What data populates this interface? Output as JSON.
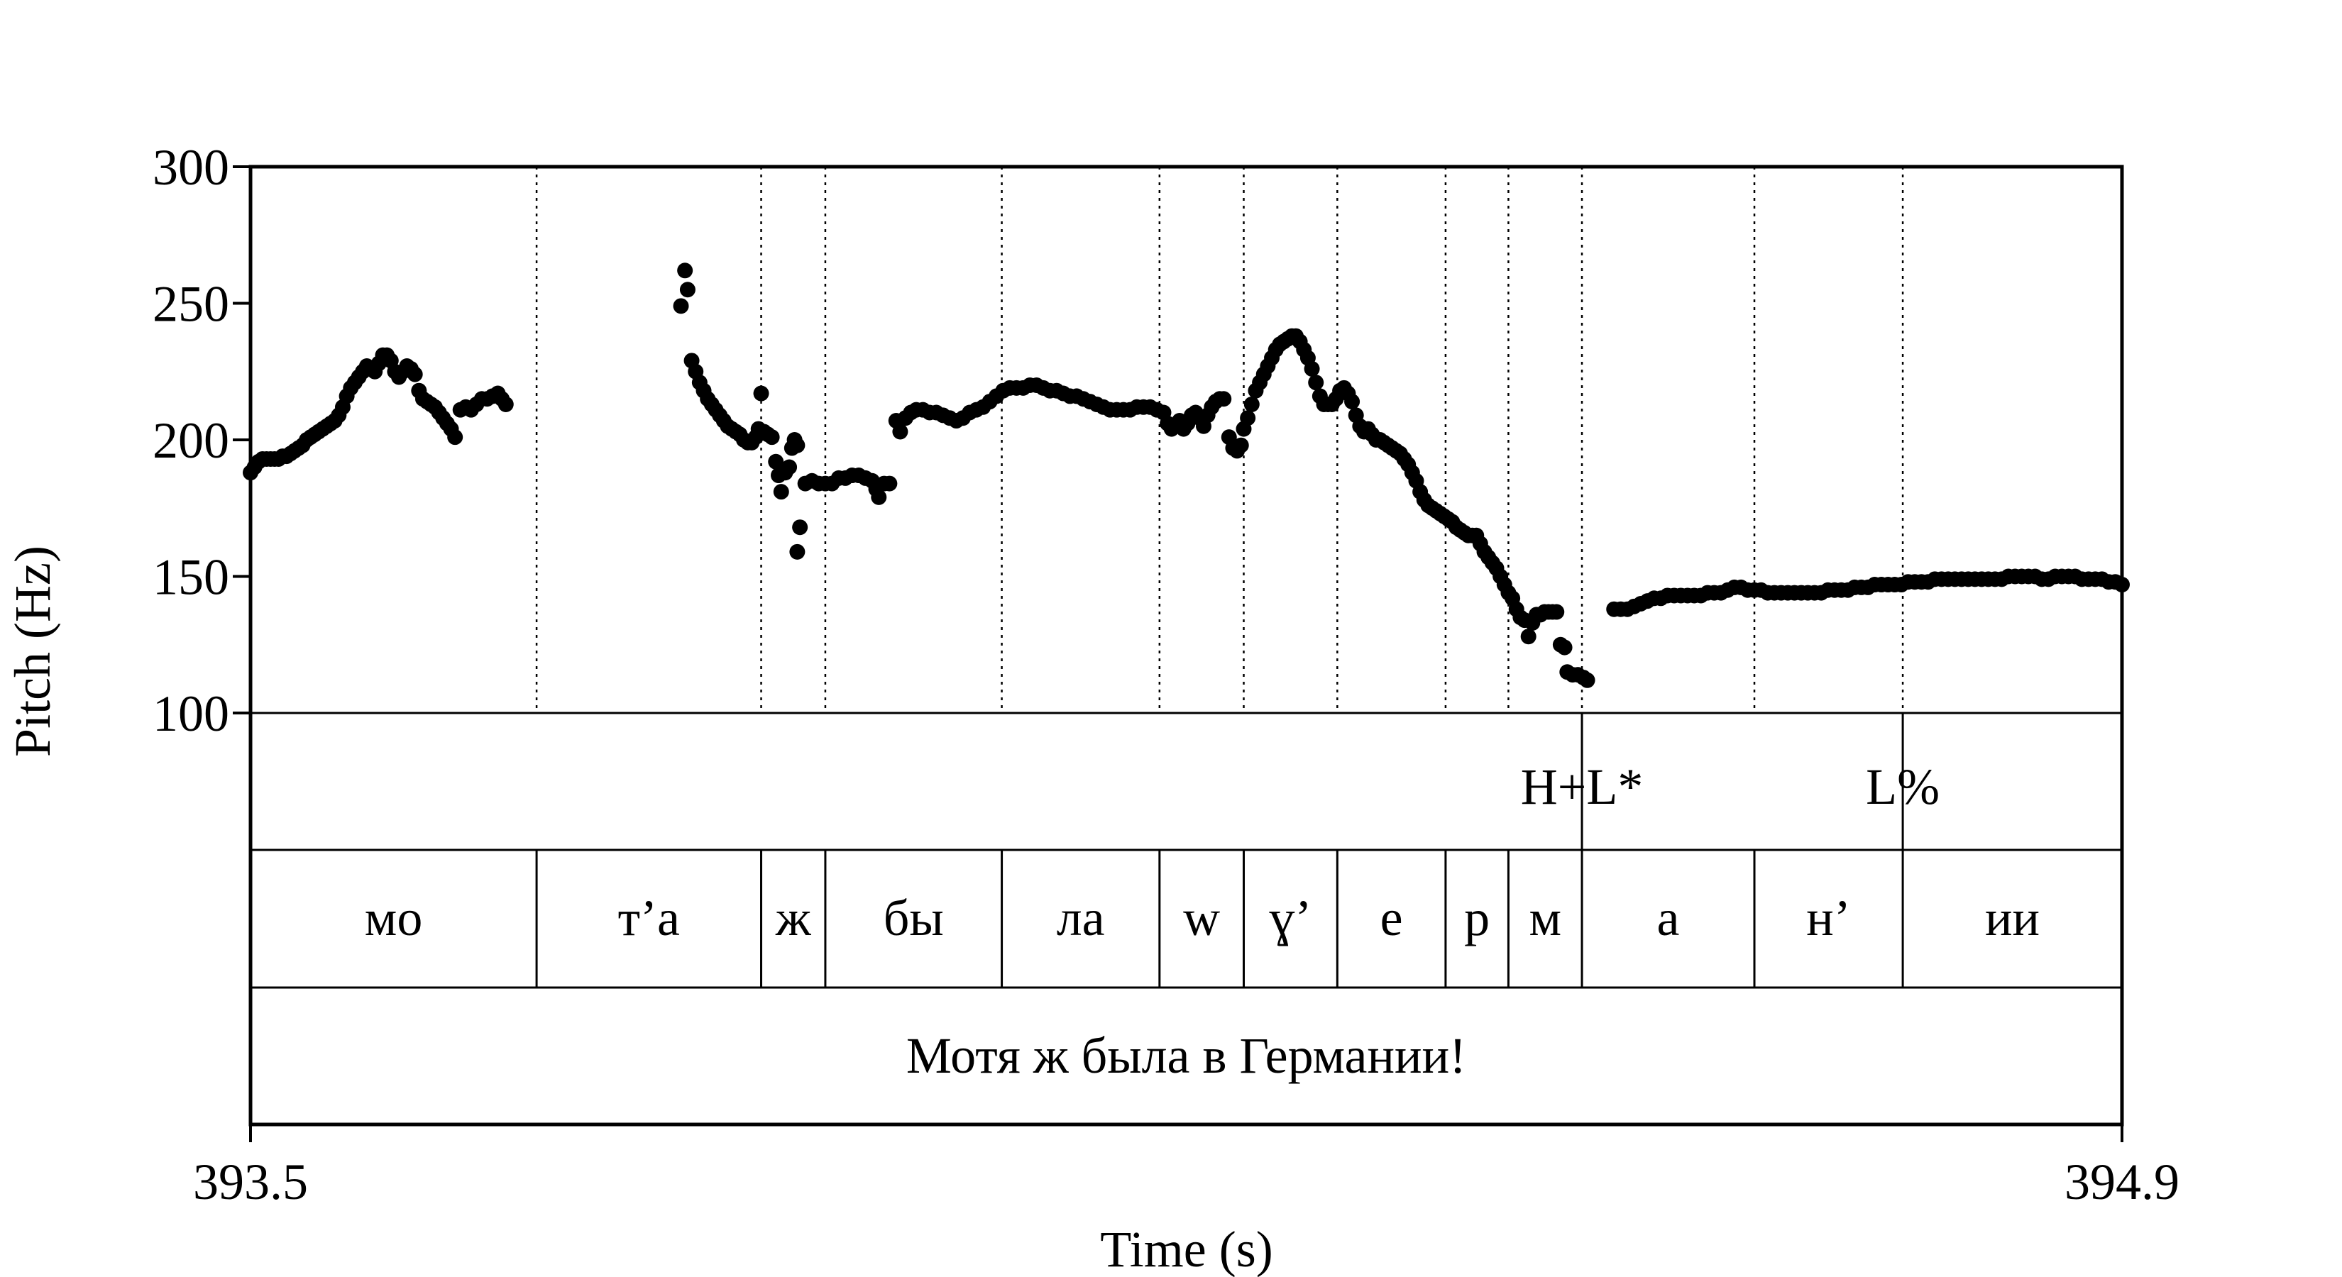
{
  "chart_data": {
    "type": "scatter",
    "ylabel": "Pitch (Hz)",
    "xlabel": "Time (s)",
    "ylim": [
      100,
      300
    ],
    "yticks": [
      "100",
      "150",
      "200",
      "250",
      "300"
    ],
    "xlim": [
      393.5,
      394.9
    ],
    "xticks": [
      "393.5",
      "394.9"
    ],
    "grid": false,
    "pitch_points": [
      [
        393.5,
        188
      ],
      [
        393.503,
        190
      ],
      [
        393.506,
        192
      ],
      [
        393.509,
        193
      ],
      [
        393.512,
        193
      ],
      [
        393.515,
        193
      ],
      [
        393.518,
        193
      ],
      [
        393.521,
        193
      ],
      [
        393.524,
        194
      ],
      [
        393.527,
        194
      ],
      [
        393.53,
        195
      ],
      [
        393.533,
        196
      ],
      [
        393.536,
        197
      ],
      [
        393.539,
        198
      ],
      [
        393.542,
        200
      ],
      [
        393.545,
        201
      ],
      [
        393.548,
        202
      ],
      [
        393.551,
        203
      ],
      [
        393.554,
        204
      ],
      [
        393.557,
        205
      ],
      [
        393.56,
        206
      ],
      [
        393.563,
        207
      ],
      [
        393.566,
        209
      ],
      [
        393.569,
        212
      ],
      [
        393.572,
        216
      ],
      [
        393.575,
        219
      ],
      [
        393.578,
        221
      ],
      [
        393.581,
        223
      ],
      [
        393.584,
        225
      ],
      [
        393.587,
        227
      ],
      [
        393.59,
        226
      ],
      [
        393.593,
        225
      ],
      [
        393.596,
        228
      ],
      [
        393.599,
        231
      ],
      [
        393.602,
        231
      ],
      [
        393.605,
        229
      ],
      [
        393.608,
        225
      ],
      [
        393.611,
        223
      ],
      [
        393.614,
        225
      ],
      [
        393.617,
        227
      ],
      [
        393.62,
        226
      ],
      [
        393.623,
        224
      ],
      [
        393.626,
        218
      ],
      [
        393.629,
        215
      ],
      [
        393.632,
        214
      ],
      [
        393.635,
        213
      ],
      [
        393.638,
        212
      ],
      [
        393.641,
        210
      ],
      [
        393.644,
        208
      ],
      [
        393.647,
        206
      ],
      [
        393.65,
        204
      ],
      [
        393.653,
        201
      ],
      [
        393.657,
        211
      ],
      [
        393.661,
        212
      ],
      [
        393.665,
        211
      ],
      [
        393.669,
        213
      ],
      [
        393.673,
        215
      ],
      [
        393.677,
        215
      ],
      [
        393.681,
        216
      ],
      [
        393.685,
        217
      ],
      [
        393.688,
        215
      ],
      [
        393.691,
        213
      ],
      [
        393.822,
        249
      ],
      [
        393.825,
        262
      ],
      [
        393.827,
        255
      ],
      [
        393.83,
        229
      ],
      [
        393.833,
        225
      ],
      [
        393.836,
        221
      ],
      [
        393.839,
        218
      ],
      [
        393.842,
        215
      ],
      [
        393.845,
        213
      ],
      [
        393.848,
        211
      ],
      [
        393.851,
        209
      ],
      [
        393.854,
        207
      ],
      [
        393.857,
        205
      ],
      [
        393.86,
        204
      ],
      [
        393.863,
        203
      ],
      [
        393.866,
        202
      ],
      [
        393.869,
        200
      ],
      [
        393.872,
        199
      ],
      [
        393.875,
        199
      ],
      [
        393.878,
        201
      ],
      [
        393.88,
        204
      ],
      [
        393.882,
        217
      ],
      [
        393.884,
        203
      ],
      [
        393.887,
        202
      ],
      [
        393.89,
        201
      ],
      [
        393.893,
        192
      ],
      [
        393.895,
        187
      ],
      [
        393.897,
        181
      ],
      [
        393.9,
        188
      ],
      [
        393.903,
        190
      ],
      [
        393.905,
        197
      ],
      [
        393.907,
        200
      ],
      [
        393.909,
        198
      ],
      [
        393.911,
        168
      ],
      [
        393.909,
        159
      ],
      [
        393.915,
        184
      ],
      [
        393.92,
        185
      ],
      [
        393.925,
        184
      ],
      [
        393.93,
        184
      ],
      [
        393.935,
        184
      ],
      [
        393.94,
        186
      ],
      [
        393.945,
        186
      ],
      [
        393.95,
        187
      ],
      [
        393.955,
        187
      ],
      [
        393.96,
        186
      ],
      [
        393.965,
        185
      ],
      [
        393.968,
        182
      ],
      [
        393.97,
        179
      ],
      [
        393.974,
        184
      ],
      [
        393.978,
        184
      ],
      [
        393.983,
        207
      ],
      [
        393.986,
        203
      ],
      [
        393.99,
        208
      ],
      [
        393.994,
        210
      ],
      [
        393.998,
        211
      ],
      [
        394.003,
        211
      ],
      [
        394.008,
        210
      ],
      [
        394.013,
        210
      ],
      [
        394.018,
        209
      ],
      [
        394.023,
        208
      ],
      [
        394.028,
        207
      ],
      [
        394.033,
        208
      ],
      [
        394.038,
        210
      ],
      [
        394.043,
        211
      ],
      [
        394.048,
        212
      ],
      [
        394.053,
        214
      ],
      [
        394.058,
        216
      ],
      [
        394.063,
        218
      ],
      [
        394.068,
        219
      ],
      [
        394.073,
        219
      ],
      [
        394.078,
        219
      ],
      [
        394.083,
        220
      ],
      [
        394.088,
        220
      ],
      [
        394.093,
        219
      ],
      [
        394.098,
        218
      ],
      [
        394.103,
        218
      ],
      [
        394.108,
        217
      ],
      [
        394.113,
        216
      ],
      [
        394.118,
        216
      ],
      [
        394.123,
        215
      ],
      [
        394.128,
        214
      ],
      [
        394.133,
        213
      ],
      [
        394.138,
        212
      ],
      [
        394.143,
        211
      ],
      [
        394.148,
        211
      ],
      [
        394.153,
        211
      ],
      [
        394.158,
        211
      ],
      [
        394.163,
        212
      ],
      [
        394.168,
        212
      ],
      [
        394.173,
        212
      ],
      [
        394.178,
        211
      ],
      [
        394.183,
        210
      ],
      [
        394.186,
        206
      ],
      [
        394.189,
        204
      ],
      [
        394.192,
        205
      ],
      [
        394.195,
        207
      ],
      [
        394.198,
        204
      ],
      [
        394.201,
        206
      ],
      [
        394.204,
        209
      ],
      [
        394.207,
        210
      ],
      [
        394.21,
        208
      ],
      [
        394.213,
        205
      ],
      [
        394.216,
        209
      ],
      [
        394.219,
        212
      ],
      [
        394.222,
        214
      ],
      [
        394.225,
        215
      ],
      [
        394.228,
        215
      ],
      [
        394.232,
        201
      ],
      [
        394.235,
        197
      ],
      [
        394.238,
        196
      ],
      [
        394.241,
        198
      ],
      [
        394.243,
        204
      ],
      [
        394.246,
        208
      ],
      [
        394.249,
        213
      ],
      [
        394.252,
        218
      ],
      [
        394.255,
        221
      ],
      [
        394.258,
        224
      ],
      [
        394.261,
        227
      ],
      [
        394.264,
        230
      ],
      [
        394.267,
        233
      ],
      [
        394.27,
        235
      ],
      [
        394.273,
        236
      ],
      [
        394.276,
        237
      ],
      [
        394.279,
        238
      ],
      [
        394.282,
        238
      ],
      [
        394.285,
        236
      ],
      [
        394.288,
        233
      ],
      [
        394.291,
        230
      ],
      [
        394.294,
        226
      ],
      [
        394.297,
        221
      ],
      [
        394.3,
        216
      ],
      [
        394.303,
        213
      ],
      [
        394.306,
        213
      ],
      [
        394.309,
        213
      ],
      [
        394.312,
        215
      ],
      [
        394.315,
        218
      ],
      [
        394.318,
        219
      ],
      [
        394.321,
        217
      ],
      [
        394.324,
        214
      ],
      [
        394.327,
        209
      ],
      [
        394.33,
        205
      ],
      [
        394.333,
        203
      ],
      [
        394.336,
        204
      ],
      [
        394.339,
        202
      ],
      [
        394.342,
        200
      ],
      [
        394.345,
        200
      ],
      [
        394.348,
        199
      ],
      [
        394.351,
        198
      ],
      [
        394.354,
        197
      ],
      [
        394.357,
        196
      ],
      [
        394.36,
        195
      ],
      [
        394.363,
        193
      ],
      [
        394.366,
        191
      ],
      [
        394.369,
        188
      ],
      [
        394.372,
        185
      ],
      [
        394.375,
        181
      ],
      [
        394.378,
        178
      ],
      [
        394.381,
        176
      ],
      [
        394.384,
        175
      ],
      [
        394.387,
        174
      ],
      [
        394.39,
        173
      ],
      [
        394.393,
        172
      ],
      [
        394.396,
        171
      ],
      [
        394.399,
        170
      ],
      [
        394.402,
        168
      ],
      [
        394.405,
        167
      ],
      [
        394.408,
        166
      ],
      [
        394.411,
        165
      ],
      [
        394.414,
        165
      ],
      [
        394.417,
        165
      ],
      [
        394.42,
        162
      ],
      [
        394.423,
        159
      ],
      [
        394.426,
        157
      ],
      [
        394.429,
        155
      ],
      [
        394.432,
        153
      ],
      [
        394.435,
        150
      ],
      [
        394.438,
        147
      ],
      [
        394.441,
        144
      ],
      [
        394.444,
        142
      ],
      [
        394.447,
        138
      ],
      [
        394.45,
        135
      ],
      [
        394.453,
        134
      ],
      [
        394.456,
        128
      ],
      [
        394.459,
        133
      ],
      [
        394.462,
        136
      ],
      [
        394.465,
        136
      ],
      [
        394.468,
        137
      ],
      [
        394.471,
        137
      ],
      [
        394.474,
        137
      ],
      [
        394.477,
        137
      ],
      [
        394.48,
        125
      ],
      [
        394.483,
        124
      ],
      [
        394.485,
        115
      ],
      [
        394.489,
        114
      ],
      [
        394.493,
        114
      ],
      [
        394.497,
        113
      ],
      [
        394.5,
        112
      ],
      [
        394.52,
        138
      ],
      [
        394.525,
        138
      ],
      [
        394.53,
        138
      ],
      [
        394.535,
        139
      ],
      [
        394.54,
        140
      ],
      [
        394.545,
        141
      ],
      [
        394.55,
        142
      ],
      [
        394.555,
        142
      ],
      [
        394.56,
        143
      ],
      [
        394.565,
        143
      ],
      [
        394.57,
        143
      ],
      [
        394.575,
        143
      ],
      [
        394.58,
        143
      ],
      [
        394.585,
        143
      ],
      [
        394.59,
        144
      ],
      [
        394.595,
        144
      ],
      [
        394.6,
        144
      ],
      [
        394.605,
        145
      ],
      [
        394.61,
        146
      ],
      [
        394.615,
        146
      ],
      [
        394.62,
        145
      ],
      [
        394.625,
        145
      ],
      [
        394.63,
        145
      ],
      [
        394.635,
        144
      ],
      [
        394.64,
        144
      ],
      [
        394.645,
        144
      ],
      [
        394.65,
        144
      ],
      [
        394.655,
        144
      ],
      [
        394.66,
        144
      ],
      [
        394.665,
        144
      ],
      [
        394.67,
        144
      ],
      [
        394.675,
        144
      ],
      [
        394.68,
        145
      ],
      [
        394.685,
        145
      ],
      [
        394.69,
        145
      ],
      [
        394.695,
        145
      ],
      [
        394.7,
        146
      ],
      [
        394.705,
        146
      ],
      [
        394.71,
        146
      ],
      [
        394.715,
        147
      ],
      [
        394.72,
        147
      ],
      [
        394.725,
        147
      ],
      [
        394.73,
        147
      ],
      [
        394.735,
        147
      ],
      [
        394.74,
        148
      ],
      [
        394.745,
        148
      ],
      [
        394.75,
        148
      ],
      [
        394.755,
        148
      ],
      [
        394.76,
        149
      ],
      [
        394.765,
        149
      ],
      [
        394.77,
        149
      ],
      [
        394.775,
        149
      ],
      [
        394.78,
        149
      ],
      [
        394.785,
        149
      ],
      [
        394.79,
        149
      ],
      [
        394.795,
        149
      ],
      [
        394.8,
        149
      ],
      [
        394.805,
        149
      ],
      [
        394.81,
        149
      ],
      [
        394.815,
        150
      ],
      [
        394.82,
        150
      ],
      [
        394.825,
        150
      ],
      [
        394.83,
        150
      ],
      [
        394.835,
        150
      ],
      [
        394.84,
        149
      ],
      [
        394.845,
        149
      ],
      [
        394.85,
        150
      ],
      [
        394.855,
        150
      ],
      [
        394.86,
        150
      ],
      [
        394.865,
        150
      ],
      [
        394.87,
        149
      ],
      [
        394.875,
        149
      ],
      [
        394.88,
        149
      ],
      [
        394.885,
        149
      ],
      [
        394.89,
        148
      ],
      [
        394.895,
        148
      ],
      [
        394.9,
        147
      ]
    ],
    "boundaries": [
      393.714,
      393.882,
      393.93,
      394.062,
      394.18,
      394.243,
      394.313,
      394.394,
      394.441,
      394.496,
      394.625,
      394.736
    ],
    "tiers": {
      "tones": [
        {
          "time": 394.496,
          "label": "H+L*"
        },
        {
          "time": 394.736,
          "label": "L%"
        }
      ],
      "segments": [
        {
          "start": 393.5,
          "end": 393.714,
          "label": "мо"
        },
        {
          "start": 393.714,
          "end": 393.882,
          "label": "т’а"
        },
        {
          "start": 393.882,
          "end": 393.93,
          "label": "ж"
        },
        {
          "start": 393.93,
          "end": 394.062,
          "label": "бы"
        },
        {
          "start": 394.062,
          "end": 394.18,
          "label": "ла"
        },
        {
          "start": 394.18,
          "end": 394.243,
          "label": "w"
        },
        {
          "start": 394.243,
          "end": 394.313,
          "label": "ɣ’"
        },
        {
          "start": 394.313,
          "end": 394.394,
          "label": "е"
        },
        {
          "start": 394.394,
          "end": 394.441,
          "label": "р"
        },
        {
          "start": 394.441,
          "end": 394.496,
          "label": "м"
        },
        {
          "start": 394.496,
          "end": 394.625,
          "label": "а"
        },
        {
          "start": 394.625,
          "end": 394.736,
          "label": "н’"
        },
        {
          "start": 394.736,
          "end": 394.9,
          "label": "ии"
        }
      ],
      "sentence": "Мотя ж была в Германии!"
    }
  }
}
